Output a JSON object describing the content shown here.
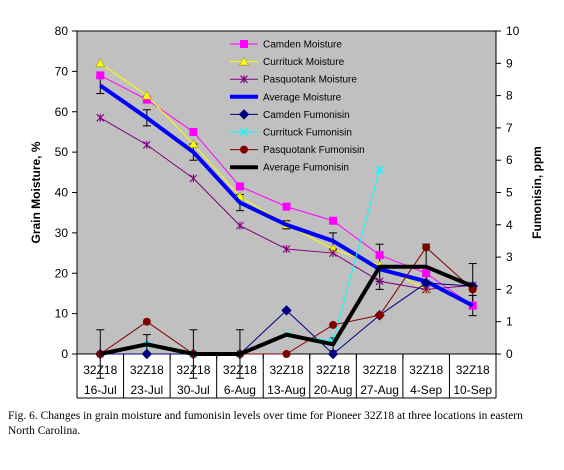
{
  "caption": "Fig. 6.  Changes in grain moisture and fumonisin levels over time for Pioneer 32Z18 at three locations in eastern North Carolina.",
  "chart_data": {
    "type": "line",
    "categories": [
      "16-Jul",
      "23-Jul",
      "30-Jul",
      "6-Aug",
      "13-Aug",
      "20-Aug",
      "27-Aug",
      "4-Sep",
      "10-Sep"
    ],
    "category_sublabel": [
      "32Z18",
      "32Z18",
      "32Z18",
      "32Z18",
      "32Z18",
      "32Z18",
      "32Z18",
      "32Z18",
      "32Z18"
    ],
    "ylabel": "Grain Moisture, %",
    "y2label": "Fumonisin, ppm",
    "ylim": [
      0,
      80
    ],
    "y_ticks": [
      "0",
      "10",
      "20",
      "30",
      "40",
      "50",
      "60",
      "70",
      "80"
    ],
    "y2lim": [
      0,
      10
    ],
    "y2_ticks": [
      "0",
      "1",
      "2",
      "3",
      "4",
      "5",
      "6",
      "7",
      "8",
      "9",
      "10"
    ],
    "plot_background": "#c0c0c0",
    "legend_position": "top-center",
    "series": [
      {
        "name": "Camden Moisture",
        "axis": "left",
        "color": "#ff00ff",
        "marker": "square",
        "width": 1,
        "values": [
          69,
          63,
          55,
          41.5,
          36.5,
          33,
          24.5,
          20,
          12
        ]
      },
      {
        "name": "Currituck Moisture",
        "axis": "left",
        "color": "#ffff00",
        "marker": "triangle",
        "width": 1,
        "values": [
          72,
          64,
          52,
          39,
          32,
          26,
          22,
          16,
          17
        ]
      },
      {
        "name": "Pasquotank Moisture",
        "axis": "left",
        "color": "#800080",
        "marker": "star",
        "width": 1,
        "values": [
          58.5,
          51.8,
          43.5,
          31.8,
          26,
          25,
          18,
          16,
          17
        ]
      },
      {
        "name": "Average Moisture",
        "axis": "left",
        "color": "#0000ff",
        "marker": "none",
        "width": 4,
        "values": [
          66.5,
          58.5,
          50,
          37.5,
          32,
          28,
          21,
          18,
          12
        ]
      },
      {
        "name": "Camden Fumonisin",
        "axis": "right",
        "color": "#000080",
        "marker": "diamond",
        "width": 1,
        "values": [
          0,
          0,
          0,
          0,
          1.35,
          0,
          1.2,
          2.2,
          2.1
        ]
      },
      {
        "name": "Currituck Fumonisin",
        "axis": "right",
        "color": "#00ffff",
        "marker": "x",
        "width": 1,
        "values": [
          0,
          0.3,
          0,
          0,
          0.6,
          0.4,
          5.7,
          null,
          null
        ]
      },
      {
        "name": "Pasquotank Fumonisin",
        "axis": "right",
        "color": "#800000",
        "marker": "circle",
        "width": 1,
        "values": [
          0,
          1,
          0,
          0,
          0,
          0.9,
          1.2,
          3.3,
          2
        ]
      },
      {
        "name": "Average Fumonisin",
        "axis": "right",
        "color": "#000000",
        "marker": "none",
        "width": 4,
        "values": [
          0,
          0.3,
          0,
          0,
          0.6,
          0.3,
          2.7,
          2.7,
          2.1
        ]
      }
    ],
    "error_bars": [
      {
        "series": "Average Moisture",
        "values": [
          66.5,
          58.5,
          50,
          37.5,
          32,
          28,
          21,
          18,
          12
        ],
        "err": [
          2,
          2,
          2,
          2,
          1,
          2,
          3,
          2,
          2.5
        ]
      },
      {
        "series": "Average Fumonisin",
        "values": [
          0,
          0.3,
          0,
          0,
          0.6,
          0.3,
          2.7,
          2.7,
          2.1
        ],
        "err": [
          0.75,
          0.3,
          0.75,
          0.75,
          0,
          0.2,
          0.7,
          0.7,
          0.7
        ]
      }
    ]
  }
}
